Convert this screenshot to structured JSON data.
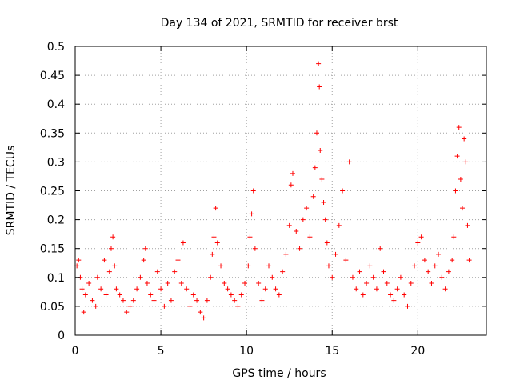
{
  "chart_data": {
    "type": "scatter",
    "title": "Day 134 of 2021, SRMTID for receiver brst",
    "xlabel": "GPS time / hours",
    "ylabel": "SRMTID / TECUs",
    "xlim": [
      0,
      24
    ],
    "ylim": [
      0,
      0.5
    ],
    "x_ticks": [
      0,
      5,
      10,
      15,
      20
    ],
    "x_tick_labels": [
      "0",
      "5",
      "10",
      "15",
      "20"
    ],
    "y_ticks": [
      0,
      0.05,
      0.1,
      0.15,
      0.2,
      0.25,
      0.3,
      0.35,
      0.4,
      0.45,
      0.5
    ],
    "y_tick_labels": [
      "0",
      "0.05",
      "0.1",
      "0.15",
      "0.2",
      "0.25",
      "0.3",
      "0.35",
      "0.4",
      "0.45",
      "0.5"
    ],
    "grid": true,
    "marker": "+",
    "color": "#ff0000",
    "series": [
      {
        "name": "SRMTID",
        "points": [
          [
            0.1,
            0.12
          ],
          [
            0.2,
            0.13
          ],
          [
            0.3,
            0.1
          ],
          [
            0.4,
            0.08
          ],
          [
            0.5,
            0.04
          ],
          [
            0.6,
            0.07
          ],
          [
            0.8,
            0.09
          ],
          [
            1.0,
            0.06
          ],
          [
            1.2,
            0.05
          ],
          [
            1.3,
            0.1
          ],
          [
            1.5,
            0.08
          ],
          [
            1.7,
            0.13
          ],
          [
            1.8,
            0.07
          ],
          [
            2.0,
            0.11
          ],
          [
            2.1,
            0.15
          ],
          [
            2.2,
            0.17
          ],
          [
            2.3,
            0.12
          ],
          [
            2.4,
            0.08
          ],
          [
            2.6,
            0.07
          ],
          [
            2.8,
            0.06
          ],
          [
            3.0,
            0.04
          ],
          [
            3.2,
            0.05
          ],
          [
            3.4,
            0.06
          ],
          [
            3.6,
            0.08
          ],
          [
            3.8,
            0.1
          ],
          [
            4.0,
            0.13
          ],
          [
            4.1,
            0.15
          ],
          [
            4.2,
            0.09
          ],
          [
            4.4,
            0.07
          ],
          [
            4.6,
            0.06
          ],
          [
            4.8,
            0.11
          ],
          [
            5.0,
            0.08
          ],
          [
            5.2,
            0.05
          ],
          [
            5.4,
            0.09
          ],
          [
            5.6,
            0.06
          ],
          [
            5.8,
            0.11
          ],
          [
            6.0,
            0.13
          ],
          [
            6.2,
            0.09
          ],
          [
            6.3,
            0.16
          ],
          [
            6.5,
            0.08
          ],
          [
            6.7,
            0.05
          ],
          [
            6.9,
            0.07
          ],
          [
            7.1,
            0.06
          ],
          [
            7.3,
            0.04
          ],
          [
            7.5,
            0.03
          ],
          [
            7.7,
            0.06
          ],
          [
            7.9,
            0.1
          ],
          [
            8.0,
            0.14
          ],
          [
            8.1,
            0.17
          ],
          [
            8.2,
            0.22
          ],
          [
            8.3,
            0.16
          ],
          [
            8.5,
            0.12
          ],
          [
            8.7,
            0.09
          ],
          [
            8.9,
            0.08
          ],
          [
            9.1,
            0.07
          ],
          [
            9.3,
            0.06
          ],
          [
            9.5,
            0.05
          ],
          [
            9.7,
            0.07
          ],
          [
            9.9,
            0.09
          ],
          [
            10.1,
            0.12
          ],
          [
            10.2,
            0.17
          ],
          [
            10.3,
            0.21
          ],
          [
            10.4,
            0.25
          ],
          [
            10.5,
            0.15
          ],
          [
            10.7,
            0.09
          ],
          [
            10.9,
            0.06
          ],
          [
            11.1,
            0.08
          ],
          [
            11.3,
            0.12
          ],
          [
            11.5,
            0.1
          ],
          [
            11.7,
            0.08
          ],
          [
            11.9,
            0.07
          ],
          [
            12.1,
            0.11
          ],
          [
            12.3,
            0.14
          ],
          [
            12.5,
            0.19
          ],
          [
            12.6,
            0.26
          ],
          [
            12.7,
            0.28
          ],
          [
            12.9,
            0.18
          ],
          [
            13.1,
            0.15
          ],
          [
            13.3,
            0.2
          ],
          [
            13.5,
            0.22
          ],
          [
            13.7,
            0.17
          ],
          [
            13.9,
            0.24
          ],
          [
            14.0,
            0.29
          ],
          [
            14.1,
            0.35
          ],
          [
            14.2,
            0.47
          ],
          [
            14.25,
            0.43
          ],
          [
            14.3,
            0.32
          ],
          [
            14.4,
            0.27
          ],
          [
            14.5,
            0.23
          ],
          [
            14.6,
            0.2
          ],
          [
            14.7,
            0.16
          ],
          [
            14.8,
            0.12
          ],
          [
            15.0,
            0.1
          ],
          [
            15.2,
            0.14
          ],
          [
            15.4,
            0.19
          ],
          [
            15.6,
            0.25
          ],
          [
            15.8,
            0.13
          ],
          [
            16.0,
            0.3
          ],
          [
            16.2,
            0.1
          ],
          [
            16.4,
            0.08
          ],
          [
            16.6,
            0.11
          ],
          [
            16.8,
            0.07
          ],
          [
            17.0,
            0.09
          ],
          [
            17.2,
            0.12
          ],
          [
            17.4,
            0.1
          ],
          [
            17.6,
            0.08
          ],
          [
            17.8,
            0.15
          ],
          [
            18.0,
            0.11
          ],
          [
            18.2,
            0.09
          ],
          [
            18.4,
            0.07
          ],
          [
            18.6,
            0.06
          ],
          [
            18.8,
            0.08
          ],
          [
            19.0,
            0.1
          ],
          [
            19.2,
            0.07
          ],
          [
            19.4,
            0.05
          ],
          [
            19.6,
            0.09
          ],
          [
            19.8,
            0.12
          ],
          [
            20.0,
            0.16
          ],
          [
            20.2,
            0.17
          ],
          [
            20.4,
            0.13
          ],
          [
            20.6,
            0.11
          ],
          [
            20.8,
            0.09
          ],
          [
            21.0,
            0.12
          ],
          [
            21.2,
            0.14
          ],
          [
            21.4,
            0.1
          ],
          [
            21.6,
            0.08
          ],
          [
            21.8,
            0.11
          ],
          [
            22.0,
            0.13
          ],
          [
            22.1,
            0.17
          ],
          [
            22.2,
            0.25
          ],
          [
            22.3,
            0.31
          ],
          [
            22.4,
            0.36
          ],
          [
            22.5,
            0.27
          ],
          [
            22.6,
            0.22
          ],
          [
            22.7,
            0.34
          ],
          [
            22.8,
            0.3
          ],
          [
            22.9,
            0.19
          ],
          [
            23.0,
            0.13
          ]
        ]
      }
    ]
  }
}
